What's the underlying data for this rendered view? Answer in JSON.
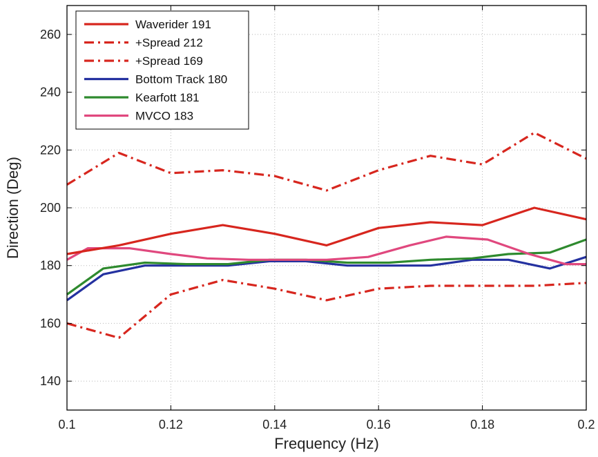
{
  "chart_data": {
    "type": "line",
    "xlabel": "Frequency (Hz)",
    "ylabel": "Direction (Deg)",
    "xlim": [
      0.1,
      0.2
    ],
    "ylim": [
      130,
      270
    ],
    "x_ticks": [
      0.1,
      0.12,
      0.14,
      0.16,
      0.18,
      0.2
    ],
    "x_tick_labels": [
      "0.1",
      "0.12",
      "0.14",
      "0.16",
      "0.18",
      "0.2"
    ],
    "y_ticks": [
      140,
      160,
      180,
      200,
      220,
      240,
      260
    ],
    "y_tick_labels": [
      "140",
      "160",
      "180",
      "200",
      "220",
      "240",
      "260"
    ],
    "grid": true,
    "legend_position": "top-left",
    "series": [
      {
        "name": "Waverider 191",
        "color": "#d7261e",
        "dash": "solid",
        "x": [
          0.1,
          0.11,
          0.12,
          0.13,
          0.14,
          0.15,
          0.16,
          0.17,
          0.18,
          0.19,
          0.2
        ],
        "y": [
          184,
          187,
          191,
          194,
          191,
          187,
          193,
          195,
          194,
          200,
          196
        ]
      },
      {
        "name": "+Spread 212",
        "color": "#d7261e",
        "dash": "dashdot",
        "x": [
          0.1,
          0.11,
          0.12,
          0.13,
          0.14,
          0.15,
          0.16,
          0.17,
          0.18,
          0.19,
          0.2
        ],
        "y": [
          208,
          219,
          212,
          213,
          211,
          206,
          213,
          218,
          215,
          226,
          217
        ]
      },
      {
        "name": "+Spread 169",
        "color": "#d7261e",
        "dash": "dashdot",
        "x": [
          0.1,
          0.11,
          0.12,
          0.13,
          0.14,
          0.15,
          0.16,
          0.17,
          0.18,
          0.19,
          0.2
        ],
        "y": [
          160,
          155,
          170,
          175,
          172,
          168,
          172,
          173,
          173,
          173,
          174
        ]
      },
      {
        "name": "Bottom Track 180",
        "color": "#2431a0",
        "dash": "solid",
        "x": [
          0.1,
          0.107,
          0.115,
          0.123,
          0.131,
          0.139,
          0.146,
          0.154,
          0.162,
          0.17,
          0.178,
          0.185,
          0.193,
          0.2
        ],
        "y": [
          168,
          177,
          180,
          180,
          180,
          181.5,
          181.5,
          180,
          180,
          180,
          182,
          182,
          179,
          183
        ]
      },
      {
        "name": "Kearfott 181",
        "color": "#2e8a2e",
        "dash": "solid",
        "x": [
          0.1,
          0.107,
          0.115,
          0.123,
          0.131,
          0.139,
          0.146,
          0.154,
          0.162,
          0.17,
          0.178,
          0.185,
          0.193,
          0.2
        ],
        "y": [
          170,
          179,
          181,
          180.5,
          180.5,
          182,
          182,
          181,
          181,
          182,
          182.5,
          184,
          184.5,
          189
        ]
      },
      {
        "name": "MVCO 183",
        "color": "#e0487e",
        "dash": "solid",
        "x": [
          0.1,
          0.104,
          0.112,
          0.12,
          0.127,
          0.135,
          0.143,
          0.15,
          0.158,
          0.166,
          0.173,
          0.181,
          0.189,
          0.196,
          0.2
        ],
        "y": [
          182,
          186,
          186,
          184,
          182.5,
          182,
          182,
          182,
          183,
          187,
          190,
          189,
          184,
          180.5,
          180.5
        ]
      }
    ]
  }
}
